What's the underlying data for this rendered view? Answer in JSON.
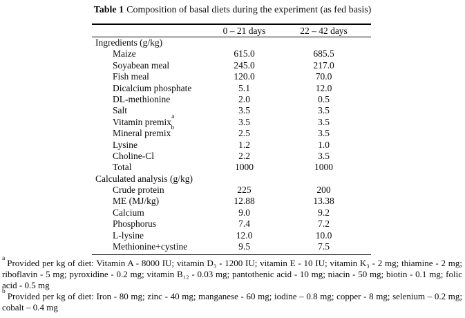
{
  "caption": {
    "label": "Table 1",
    "text": "Composition of basal diets during the experiment (as fed basis)"
  },
  "table": {
    "col_headers": [
      "0 – 21 days",
      "22 – 42 days"
    ],
    "rows": [
      {
        "label": "Ingredients (g/kg)",
        "section": true,
        "v1": "",
        "v2": ""
      },
      {
        "label": "Maize",
        "v1": "615.0",
        "v2": "685.5"
      },
      {
        "label": "Soyabean meal",
        "v1": "245.0",
        "v2": "217.0"
      },
      {
        "label": "Fish meal",
        "v1": "120.0",
        "v2": "70.0"
      },
      {
        "label": "Dicalcium phosphate",
        "v1": "5.1",
        "v2": "12.0"
      },
      {
        "label": "DL-methionine",
        "v1": "2.0",
        "v2": "0.5"
      },
      {
        "label": "Salt",
        "v1": "3.5",
        "v2": "3.5"
      },
      {
        "label": "Vitamin premix",
        "sup": "a",
        "v1": "3.5",
        "v2": "3.5"
      },
      {
        "label": "Mineral premix",
        "sup": "b",
        "v1": "2.5",
        "v2": "3.5"
      },
      {
        "label": "Lysine",
        "v1": "1.2",
        "v2": "1.0"
      },
      {
        "label": "Choline-Cl",
        "v1": "2.2",
        "v2": "3.5"
      },
      {
        "label": "Total",
        "v1": "1000",
        "v2": "1000"
      },
      {
        "label": "Calculated analysis (g/kg)",
        "section": true,
        "v1": "",
        "v2": ""
      },
      {
        "label": "Crude protein",
        "v1": "225",
        "v2": "200"
      },
      {
        "label": "ME (MJ/kg)",
        "v1": "12.88",
        "v2": "13.38"
      },
      {
        "label": "Calcium",
        "v1": "9.0",
        "v2": "9.2"
      },
      {
        "label": "Phosphorus",
        "v1": "7.4",
        "v2": "7.2"
      },
      {
        "label": "L-lysine",
        "v1": "12.0",
        "v2": "10.0"
      },
      {
        "label": "Methionine+cystine",
        "v1": "9.5",
        "v2": "7.5"
      }
    ]
  },
  "footnotes": [
    {
      "marker": "a",
      "text": "Provided per kg of diet: Vitamin A - 8000 IU; vitamin D₃ - 1200 IU; vitamin E - 10 IU; vitamin K₃ - 2 mg; thiamine - 2 mg; riboflavin - 5 mg; pyroxidine - 0.2 mg; vitamin B₁₂ - 0.03 mg; pantothenic acid - 10 mg; niacin - 50 mg; biotin - 0.1 mg; folic acid - 0.5 mg"
    },
    {
      "marker": "b",
      "text": "Provided per kg of diet: Iron - 80 mg; zinc - 40 mg; manganese - 60 mg; iodine – 0.8 mg; copper - 8 mg; selenium – 0.2 mg; cobalt – 0.4 mg"
    }
  ]
}
